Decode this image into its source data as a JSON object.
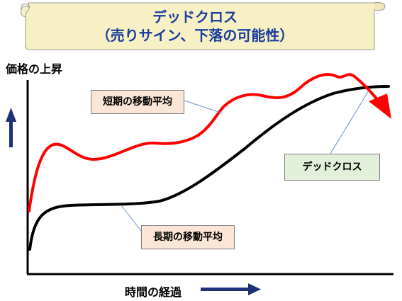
{
  "header": {
    "title_line1": "デッドクロス",
    "title_line2": "（売りサイン、下落の可能性）"
  },
  "axes": {
    "y_label": "価格の上昇",
    "x_label": "時間の経過"
  },
  "callouts": {
    "short_ma": "短期の移動平均",
    "long_ma": "長期の移動平均",
    "dead_cross": "デッドクロス"
  },
  "colors": {
    "short_line": "#ff0000",
    "long_line": "#000000",
    "arrow": "#1f2f7a",
    "banner_fill": "#f7f0c4",
    "title_text": "#1a3d9c"
  }
}
